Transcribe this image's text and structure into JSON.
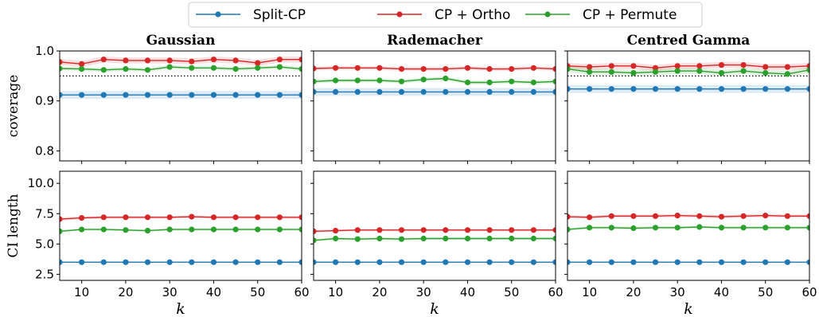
{
  "legend": {
    "entries": [
      {
        "label": "Split-CP",
        "color": "#1f77b4"
      },
      {
        "label": "CP + Ortho",
        "color": "#d62728"
      },
      {
        "label": "CP + Permute",
        "color": "#2ca02c"
      }
    ]
  },
  "chart_data": [
    {
      "type": "line",
      "title": "Gaussian",
      "xlabel": "",
      "ylabel": "coverage",
      "xlim": [
        5,
        60
      ],
      "ylim": [
        0.78,
        1.0
      ],
      "yticks": [
        0.8,
        0.9,
        1.0
      ],
      "ytick_labels": [
        "0.8",
        "0.9",
        "1.0"
      ],
      "xticks": [
        10,
        20,
        30,
        40,
        50,
        60
      ],
      "xtick_labels": [],
      "reference_line": 0.95,
      "x": [
        5,
        10,
        15,
        20,
        25,
        30,
        35,
        40,
        45,
        50,
        55,
        60
      ],
      "series": [
        {
          "name": "Split-CP",
          "values": [
            0.912,
            0.912,
            0.912,
            0.912,
            0.912,
            0.912,
            0.912,
            0.912,
            0.912,
            0.912,
            0.912,
            0.912
          ],
          "band": 0.008
        },
        {
          "name": "CP + Ortho",
          "values": [
            0.978,
            0.974,
            0.983,
            0.981,
            0.981,
            0.981,
            0.979,
            0.983,
            0.981,
            0.976,
            0.983,
            0.983
          ],
          "band": 0.006
        },
        {
          "name": "CP + Permute",
          "values": [
            0.965,
            0.964,
            0.962,
            0.964,
            0.962,
            0.968,
            0.966,
            0.966,
            0.964,
            0.966,
            0.968,
            0.964
          ],
          "band": 0.004
        }
      ]
    },
    {
      "type": "line",
      "title": "Rademacher",
      "xlabel": "",
      "ylabel": "",
      "xlim": [
        5,
        60
      ],
      "ylim": [
        0.78,
        1.0
      ],
      "yticks": [
        0.8,
        0.9,
        1.0
      ],
      "ytick_labels": [],
      "xticks": [
        10,
        20,
        30,
        40,
        50,
        60
      ],
      "xtick_labels": [],
      "x": [
        5,
        10,
        15,
        20,
        25,
        30,
        35,
        40,
        45,
        50,
        55,
        60
      ],
      "series": [
        {
          "name": "Split-CP",
          "values": [
            0.918,
            0.918,
            0.918,
            0.918,
            0.918,
            0.918,
            0.918,
            0.918,
            0.918,
            0.918,
            0.918,
            0.918
          ],
          "band": 0.008
        },
        {
          "name": "CP + Ortho",
          "values": [
            0.965,
            0.966,
            0.966,
            0.966,
            0.964,
            0.964,
            0.964,
            0.966,
            0.964,
            0.964,
            0.966,
            0.964
          ],
          "band": 0.004
        },
        {
          "name": "CP + Permute",
          "values": [
            0.939,
            0.941,
            0.941,
            0.941,
            0.939,
            0.943,
            0.945,
            0.937,
            0.937,
            0.939,
            0.937,
            0.939
          ],
          "band": 0.004
        }
      ]
    },
    {
      "type": "line",
      "title": "Centred Gamma",
      "xlabel": "",
      "ylabel": "",
      "xlim": [
        5,
        60
      ],
      "ylim": [
        0.78,
        1.0
      ],
      "yticks": [
        0.8,
        0.9,
        1.0
      ],
      "ytick_labels": [],
      "xticks": [
        10,
        20,
        30,
        40,
        50,
        60
      ],
      "xtick_labels": [],
      "reference_line": 0.95,
      "x": [
        5,
        10,
        15,
        20,
        25,
        30,
        35,
        40,
        45,
        50,
        55,
        60
      ],
      "series": [
        {
          "name": "Split-CP",
          "values": [
            0.924,
            0.924,
            0.924,
            0.924,
            0.924,
            0.924,
            0.924,
            0.924,
            0.924,
            0.924,
            0.924,
            0.924
          ],
          "band": 0.008
        },
        {
          "name": "CP + Ortho",
          "values": [
            0.97,
            0.968,
            0.97,
            0.97,
            0.966,
            0.97,
            0.97,
            0.972,
            0.972,
            0.968,
            0.968,
            0.97
          ],
          "band": 0.006
        },
        {
          "name": "CP + Permute",
          "values": [
            0.964,
            0.958,
            0.958,
            0.956,
            0.958,
            0.96,
            0.96,
            0.956,
            0.96,
            0.956,
            0.954,
            0.962
          ],
          "band": 0.006
        }
      ]
    },
    {
      "type": "line",
      "title": "",
      "xlabel": "k",
      "ylabel": "CI length",
      "xlim": [
        5,
        60
      ],
      "ylim": [
        2.0,
        11.0
      ],
      "yticks": [
        2.5,
        5.0,
        7.5,
        10.0
      ],
      "ytick_labels": [
        "2.5",
        "5.0",
        "7.5",
        "10.0"
      ],
      "xticks": [
        10,
        20,
        30,
        40,
        50,
        60
      ],
      "xtick_labels": [
        "10",
        "20",
        "30",
        "40",
        "50",
        "60"
      ],
      "x": [
        5,
        10,
        15,
        20,
        25,
        30,
        35,
        40,
        45,
        50,
        55,
        60
      ],
      "series": [
        {
          "name": "Split-CP",
          "values": [
            3.5,
            3.5,
            3.5,
            3.5,
            3.5,
            3.5,
            3.5,
            3.5,
            3.5,
            3.5,
            3.5,
            3.5
          ],
          "band": 0.05
        },
        {
          "name": "CP + Ortho",
          "values": [
            7.05,
            7.15,
            7.2,
            7.2,
            7.2,
            7.2,
            7.25,
            7.2,
            7.2,
            7.2,
            7.2,
            7.2
          ],
          "band": 0.12
        },
        {
          "name": "CP + Permute",
          "values": [
            6.05,
            6.2,
            6.2,
            6.15,
            6.1,
            6.2,
            6.2,
            6.2,
            6.2,
            6.2,
            6.2,
            6.2
          ],
          "band": 0.1
        }
      ]
    },
    {
      "type": "line",
      "title": "",
      "xlabel": "k",
      "ylabel": "",
      "xlim": [
        5,
        60
      ],
      "ylim": [
        2.0,
        11.0
      ],
      "yticks": [
        2.5,
        5.0,
        7.5,
        10.0
      ],
      "ytick_labels": [],
      "xticks": [
        10,
        20,
        30,
        40,
        50,
        60
      ],
      "xtick_labels": [
        "10",
        "20",
        "30",
        "40",
        "50",
        "60"
      ],
      "x": [
        5,
        10,
        15,
        20,
        25,
        30,
        35,
        40,
        45,
        50,
        55,
        60
      ],
      "series": [
        {
          "name": "Split-CP",
          "values": [
            3.5,
            3.5,
            3.5,
            3.5,
            3.5,
            3.5,
            3.5,
            3.5,
            3.5,
            3.5,
            3.5,
            3.5
          ],
          "band": 0.05
        },
        {
          "name": "CP + Ortho",
          "values": [
            6.05,
            6.1,
            6.15,
            6.15,
            6.15,
            6.15,
            6.15,
            6.15,
            6.15,
            6.15,
            6.15,
            6.15
          ],
          "band": 0.1
        },
        {
          "name": "CP + Permute",
          "values": [
            5.3,
            5.45,
            5.4,
            5.45,
            5.4,
            5.45,
            5.45,
            5.45,
            5.45,
            5.45,
            5.45,
            5.45
          ],
          "band": 0.1
        }
      ]
    },
    {
      "type": "line",
      "title": "",
      "xlabel": "k",
      "ylabel": "",
      "xlim": [
        5,
        60
      ],
      "ylim": [
        2.0,
        11.0
      ],
      "yticks": [
        2.5,
        5.0,
        7.5,
        10.0
      ],
      "ytick_labels": [],
      "xticks": [
        10,
        20,
        30,
        40,
        50,
        60
      ],
      "xtick_labels": [
        "10",
        "20",
        "30",
        "40",
        "50",
        "60"
      ],
      "x": [
        5,
        10,
        15,
        20,
        25,
        30,
        35,
        40,
        45,
        50,
        55,
        60
      ],
      "series": [
        {
          "name": "Split-CP",
          "values": [
            3.5,
            3.5,
            3.5,
            3.5,
            3.5,
            3.5,
            3.5,
            3.5,
            3.5,
            3.5,
            3.5,
            3.5
          ],
          "band": 0.05
        },
        {
          "name": "CP + Ortho",
          "values": [
            7.25,
            7.2,
            7.3,
            7.3,
            7.3,
            7.35,
            7.3,
            7.25,
            7.3,
            7.35,
            7.3,
            7.3
          ],
          "band": 0.14
        },
        {
          "name": "CP + Permute",
          "values": [
            6.2,
            6.35,
            6.35,
            6.3,
            6.35,
            6.35,
            6.4,
            6.35,
            6.35,
            6.35,
            6.35,
            6.35
          ],
          "band": 0.12
        }
      ]
    }
  ]
}
